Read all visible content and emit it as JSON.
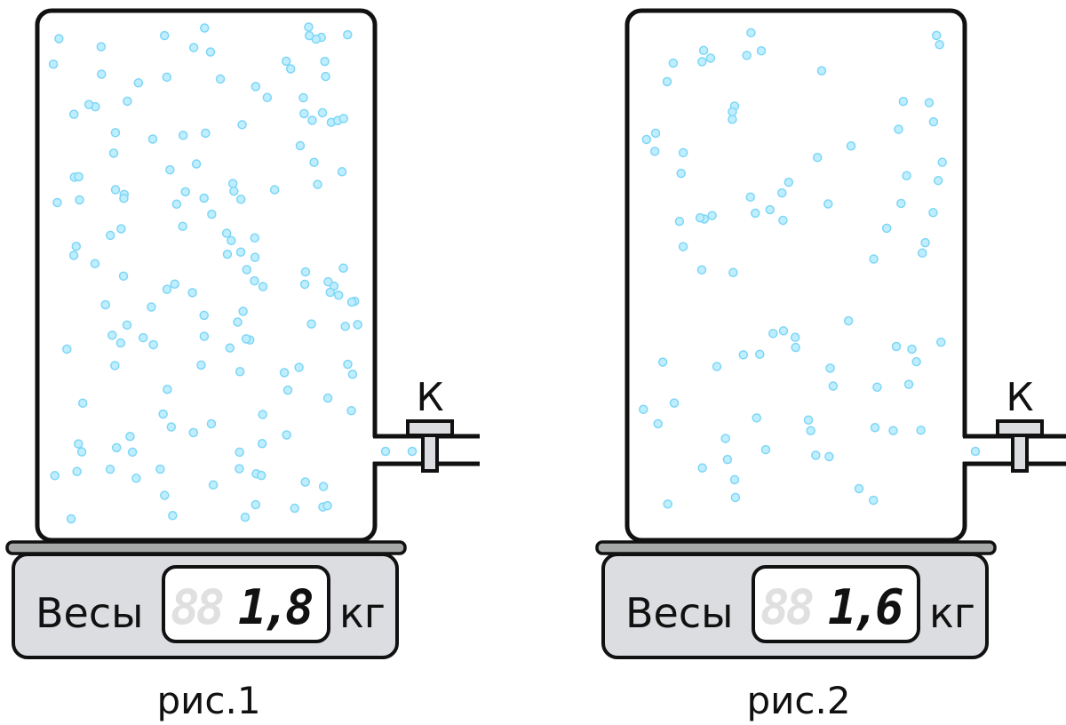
{
  "figures": [
    {
      "caption": "рис.1",
      "scale_label": "Весы",
      "unit": "кг",
      "ghost_digits": "88",
      "reading": "1,8",
      "valve_label": "К",
      "gas_density": "high"
    },
    {
      "caption": "рис.2",
      "scale_label": "Весы",
      "unit": "кг",
      "ghost_digits": "88",
      "reading": "1,6",
      "valve_label": "К",
      "gas_density": "low"
    }
  ],
  "colors": {
    "outline": "#111111",
    "scale_body": "#dcdde0",
    "platform": "#a7a9a8",
    "particle": "#bfeeff",
    "particle_edge": "#7fd6f5",
    "ghost_digit": "#e0e0e0"
  }
}
